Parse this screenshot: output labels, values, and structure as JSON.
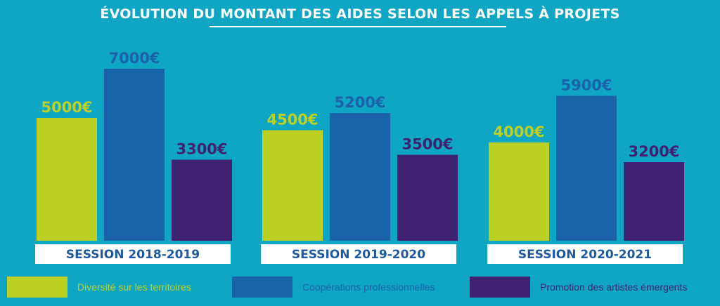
{
  "chart_data": {
    "type": "bar",
    "title": "ÉVOLUTION DU MONTANT DES AIDES SELON LES APPELS À PROJETS",
    "categories": [
      "SESSION 2018-2019",
      "SESSION 2019-2020",
      "SESSION 2020-2021"
    ],
    "series": [
      {
        "name": "Diversité sur les territoires",
        "color": "#bdd124",
        "values": [
          5000,
          4500,
          4000
        ],
        "labels": [
          "5000€",
          "4500€",
          "4000€"
        ]
      },
      {
        "name": "Coopérations professionnelles",
        "color": "#1a63a9",
        "values": [
          7000,
          5200,
          5900
        ],
        "labels": [
          "7000€",
          "5200€",
          "5900€"
        ]
      },
      {
        "name": "Promotion des artistes émergents",
        "color": "#3e2170",
        "values": [
          3300,
          3500,
          3200
        ],
        "labels": [
          "3300€",
          "3500€",
          "3200€"
        ]
      }
    ],
    "ylim": [
      0,
      7000
    ],
    "grid": false,
    "legend_position": "bottom",
    "xlabel": "",
    "ylabel": ""
  },
  "colors": {
    "background": "#0fa6c4",
    "category_box": "#ffffff",
    "category_text": "#1d5aa0"
  }
}
